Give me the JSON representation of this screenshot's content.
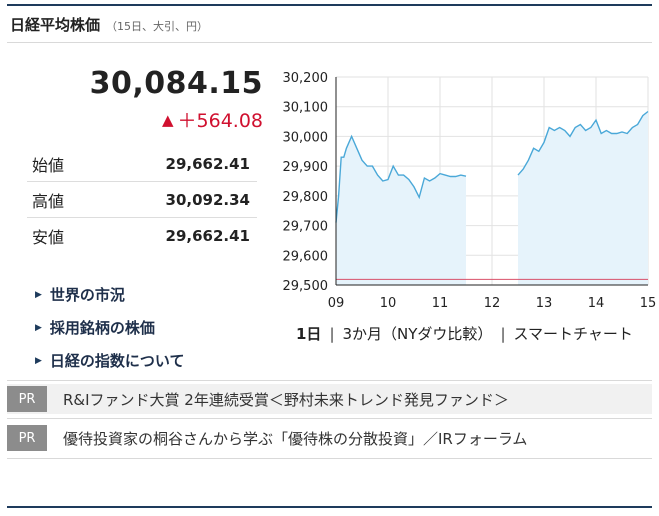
{
  "header": {
    "title": "日経平均株価",
    "subtitle": "（15日、大引、円）"
  },
  "quote": {
    "price": "30,084.15",
    "change_symbol": "▲",
    "change": "＋564.08",
    "change_color": "#d0102f"
  },
  "stats": [
    {
      "label": "始値",
      "value": "29,662.41"
    },
    {
      "label": "高値",
      "value": "30,092.34"
    },
    {
      "label": "安値",
      "value": "29,662.41"
    }
  ],
  "links": [
    {
      "icon": "triangle-right-icon",
      "label": "世界の市況"
    },
    {
      "icon": "triangle-right-icon",
      "label": "採用銘柄の株価"
    },
    {
      "icon": "triangle-right-icon",
      "label": "日経の指数について"
    }
  ],
  "chart_data": {
    "type": "area",
    "x_ticks": [
      "09",
      "10",
      "11",
      "12",
      "13",
      "14",
      "15"
    ],
    "y_ticks": [
      "30,200",
      "30,100",
      "30,000",
      "29,900",
      "29,800",
      "29,700",
      "29,600",
      "29,500"
    ],
    "ylim": [
      29500,
      30200
    ],
    "xlim": [
      9,
      15
    ],
    "grid": true,
    "line_color": "#4aa8d8",
    "fill_color": "#e6f3fb",
    "reference_value": 29519,
    "reference_color": "#d9506a",
    "series": [
      {
        "segment": "morning",
        "x": [
          9.0,
          9.05,
          9.1,
          9.15,
          9.2,
          9.3,
          9.4,
          9.5,
          9.6,
          9.7,
          9.8,
          9.9,
          10.0,
          10.1,
          10.2,
          10.3,
          10.4,
          10.5,
          10.6,
          10.7,
          10.8,
          10.9,
          11.0,
          11.1,
          11.2,
          11.3,
          11.4,
          11.5
        ],
        "values": [
          29710,
          29800,
          29930,
          29930,
          29960,
          30000,
          29960,
          29920,
          29900,
          29900,
          29870,
          29850,
          29855,
          29900,
          29870,
          29870,
          29855,
          29830,
          29795,
          29860,
          29850,
          29860,
          29875,
          29870,
          29865,
          29865,
          29870,
          29866
        ]
      },
      {
        "segment": "afternoon",
        "x": [
          12.5,
          12.6,
          12.7,
          12.8,
          12.9,
          13.0,
          13.1,
          13.2,
          13.3,
          13.4,
          13.5,
          13.6,
          13.7,
          13.8,
          13.9,
          14.0,
          14.1,
          14.2,
          14.3,
          14.4,
          14.5,
          14.6,
          14.7,
          14.8,
          14.9,
          15.0
        ],
        "values": [
          29870,
          29890,
          29920,
          29960,
          29950,
          29980,
          30030,
          30020,
          30030,
          30020,
          30000,
          30030,
          30040,
          30020,
          30030,
          30055,
          30010,
          30020,
          30010,
          30010,
          30015,
          30010,
          30030,
          30040,
          30070,
          30084
        ]
      }
    ]
  },
  "chart_tabs": [
    "1日",
    "3か月（NYダウ比較）",
    "スマートチャート"
  ],
  "ads": [
    {
      "badge": "PR",
      "text": "R&Iファンド大賞 2年連続受賞＜野村未来トレンド発見ファンド＞"
    },
    {
      "badge": "PR",
      "text": "優待投資家の桐谷さんから学ぶ「優待株の分散投資」／IRフォーラム"
    }
  ]
}
